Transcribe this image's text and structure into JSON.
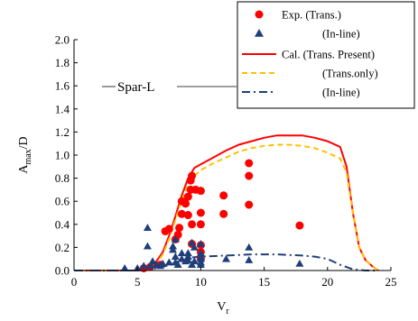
{
  "chart_data": {
    "type": "scatter",
    "title": "",
    "annotation": "Spar-L",
    "xlabel": "V",
    "xlabel_sub": "r",
    "ylabel": "A",
    "ylabel_sub": "max",
    "ylabel_suffix": "/D",
    "xlim": [
      0,
      25
    ],
    "ylim": [
      0,
      2.0
    ],
    "xticks": [
      0,
      5,
      10,
      15,
      20,
      25
    ],
    "yticks": [
      0.0,
      0.2,
      0.4,
      0.6,
      0.8,
      1.0,
      1.2,
      1.4,
      1.6,
      1.8,
      2.0
    ],
    "grid": false,
    "legend_position": "top-right",
    "colors": {
      "exp_trans": "#ff0000",
      "exp_inline": "#1f3f7a",
      "cal_trans_present": "#ff0000",
      "cal_trans_only": "#ffc000",
      "cal_inline": "#1f3f7a"
    },
    "series": [
      {
        "name": "Exp. (Trans.)",
        "kind": "marker-circle",
        "points": [
          [
            5.5,
            0.02
          ],
          [
            6.0,
            0.03
          ],
          [
            6.8,
            0.05
          ],
          [
            7.2,
            0.34
          ],
          [
            7.5,
            0.36
          ],
          [
            8.0,
            0.27
          ],
          [
            8.2,
            0.31
          ],
          [
            8.3,
            0.37
          ],
          [
            8.5,
            0.49
          ],
          [
            8.5,
            0.6
          ],
          [
            8.8,
            0.58
          ],
          [
            9.0,
            0.48
          ],
          [
            9.0,
            0.64
          ],
          [
            9.2,
            0.7
          ],
          [
            9.2,
            0.78
          ],
          [
            9.3,
            0.82
          ],
          [
            9.3,
            0.4
          ],
          [
            9.3,
            0.23
          ],
          [
            9.6,
            0.7
          ],
          [
            10.0,
            0.69
          ],
          [
            10.0,
            0.5
          ],
          [
            10.0,
            0.4
          ],
          [
            10.0,
            0.22
          ],
          [
            10.0,
            0.16
          ],
          [
            10.0,
            0.1
          ],
          [
            11.8,
            0.65
          ],
          [
            11.8,
            0.49
          ],
          [
            13.8,
            0.93
          ],
          [
            13.8,
            0.82
          ],
          [
            13.8,
            0.57
          ],
          [
            17.8,
            0.39
          ]
        ]
      },
      {
        "name": "(In-line)",
        "kind": "marker-triangle",
        "points": [
          [
            4.0,
            0.02
          ],
          [
            5.0,
            0.02
          ],
          [
            5.5,
            0.04
          ],
          [
            5.8,
            0.21
          ],
          [
            5.8,
            0.37
          ],
          [
            6.0,
            0.04
          ],
          [
            6.2,
            0.08
          ],
          [
            6.5,
            0.05
          ],
          [
            6.8,
            0.04
          ],
          [
            7.0,
            0.06
          ],
          [
            7.5,
            0.07
          ],
          [
            7.8,
            0.21
          ],
          [
            7.8,
            0.18
          ],
          [
            8.0,
            0.27
          ],
          [
            8.0,
            0.12
          ],
          [
            8.0,
            0.07
          ],
          [
            8.2,
            0.05
          ],
          [
            8.5,
            0.1
          ],
          [
            8.5,
            0.15
          ],
          [
            8.8,
            0.08
          ],
          [
            9.0,
            0.09
          ],
          [
            9.0,
            0.12
          ],
          [
            9.0,
            0.15
          ],
          [
            9.3,
            0.05
          ],
          [
            9.3,
            0.24
          ],
          [
            9.5,
            0.08
          ],
          [
            9.5,
            0.2
          ],
          [
            10.0,
            0.05
          ],
          [
            10.0,
            0.07
          ],
          [
            10.0,
            0.1
          ],
          [
            10.0,
            0.12
          ],
          [
            10.0,
            0.15
          ],
          [
            10.0,
            0.23
          ],
          [
            12.0,
            0.1
          ],
          [
            13.8,
            0.2
          ],
          [
            13.8,
            0.09
          ],
          [
            17.8,
            0.06
          ]
        ]
      },
      {
        "name": "Cal. (Trans. Present)",
        "kind": "line-solid",
        "points": [
          [
            0.0,
            0.0
          ],
          [
            5.0,
            0.0
          ],
          [
            6.0,
            0.03
          ],
          [
            6.5,
            0.08
          ],
          [
            7.0,
            0.16
          ],
          [
            7.5,
            0.3
          ],
          [
            8.0,
            0.47
          ],
          [
            8.5,
            0.65
          ],
          [
            9.0,
            0.8
          ],
          [
            9.5,
            0.89
          ],
          [
            10.0,
            0.92
          ],
          [
            11.0,
            0.98
          ],
          [
            12.0,
            1.04
          ],
          [
            13.0,
            1.09
          ],
          [
            14.0,
            1.12
          ],
          [
            15.0,
            1.15
          ],
          [
            16.0,
            1.17
          ],
          [
            17.0,
            1.17
          ],
          [
            18.0,
            1.17
          ],
          [
            19.0,
            1.15
          ],
          [
            20.0,
            1.12
          ],
          [
            21.0,
            1.07
          ],
          [
            21.5,
            0.9
          ],
          [
            22.0,
            0.5
          ],
          [
            22.5,
            0.2
          ],
          [
            23.0,
            0.09
          ],
          [
            23.5,
            0.04
          ],
          [
            24.0,
            0.0
          ]
        ]
      },
      {
        "name": "(Trans.only)",
        "kind": "line-dashed",
        "points": [
          [
            0.0,
            0.0
          ],
          [
            5.0,
            0.0
          ],
          [
            6.0,
            0.02
          ],
          [
            6.5,
            0.06
          ],
          [
            7.0,
            0.14
          ],
          [
            7.5,
            0.27
          ],
          [
            8.0,
            0.44
          ],
          [
            8.5,
            0.61
          ],
          [
            9.0,
            0.75
          ],
          [
            9.5,
            0.82
          ],
          [
            10.0,
            0.87
          ],
          [
            11.0,
            0.93
          ],
          [
            12.0,
            0.98
          ],
          [
            13.0,
            1.03
          ],
          [
            14.0,
            1.06
          ],
          [
            15.0,
            1.08
          ],
          [
            16.0,
            1.09
          ],
          [
            17.0,
            1.09
          ],
          [
            18.0,
            1.08
          ],
          [
            19.0,
            1.06
          ],
          [
            20.0,
            1.02
          ],
          [
            21.0,
            0.97
          ],
          [
            21.5,
            0.85
          ],
          [
            22.0,
            0.5
          ],
          [
            22.5,
            0.2
          ],
          [
            23.0,
            0.09
          ],
          [
            23.5,
            0.04
          ],
          [
            24.0,
            0.0
          ]
        ]
      },
      {
        "name": "(In-line)",
        "kind": "line-dashdot",
        "points": [
          [
            0.0,
            0.0
          ],
          [
            5.0,
            0.0
          ],
          [
            6.0,
            0.01
          ],
          [
            7.0,
            0.03
          ],
          [
            8.0,
            0.07
          ],
          [
            9.0,
            0.11
          ],
          [
            10.0,
            0.12
          ],
          [
            12.0,
            0.13
          ],
          [
            14.0,
            0.14
          ],
          [
            16.0,
            0.14
          ],
          [
            18.0,
            0.13
          ],
          [
            19.0,
            0.12
          ],
          [
            20.0,
            0.1
          ],
          [
            21.0,
            0.05
          ],
          [
            22.0,
            0.01
          ],
          [
            23.0,
            0.0
          ],
          [
            24.0,
            0.0
          ]
        ]
      }
    ]
  }
}
